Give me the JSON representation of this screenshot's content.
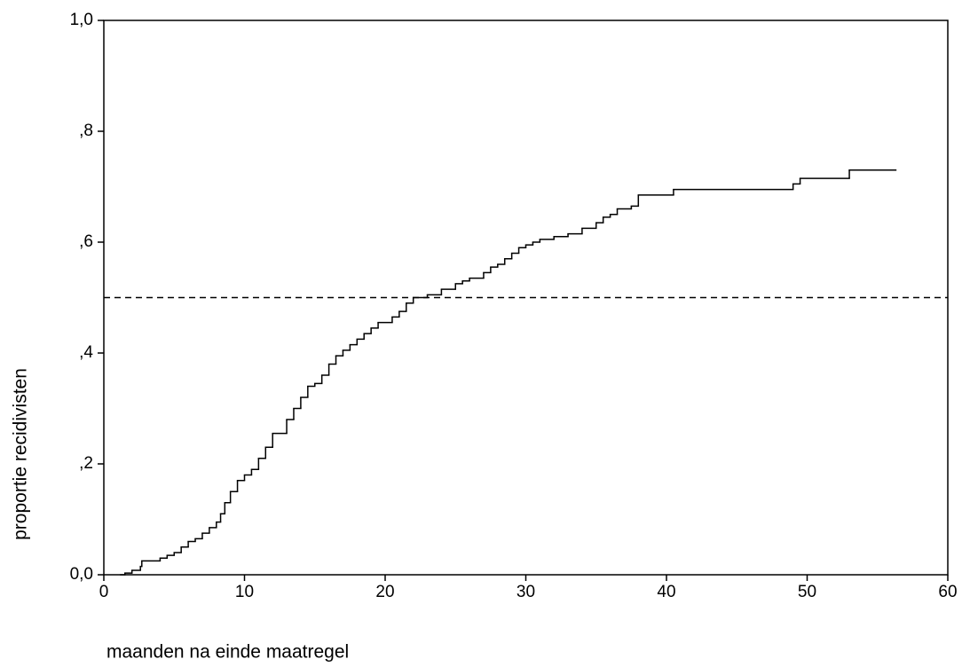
{
  "chart_data": {
    "type": "line",
    "step": true,
    "x_label": "maanden na einde maatregel",
    "y_label": "proportie recidivisten",
    "color": "#000000",
    "x": [
      1.2,
      1.5,
      2,
      2.6,
      2.7,
      4,
      4.5,
      5,
      5.5,
      6,
      6.5,
      7,
      7.5,
      8,
      8.3,
      8.6,
      9,
      9.5,
      10,
      10.5,
      11,
      11.5,
      12,
      13,
      13.5,
      14,
      14.5,
      15,
      15.5,
      16,
      16.5,
      17,
      17.5,
      18,
      18.5,
      19,
      19.5,
      20.5,
      21,
      21.5,
      22,
      23,
      24,
      25,
      25.5,
      26,
      27,
      27.5,
      28,
      28.5,
      29,
      29.5,
      30,
      30.5,
      31,
      32,
      33,
      34,
      35,
      35.5,
      36,
      36.5,
      37.5,
      38,
      40.5,
      49,
      49.5,
      53,
      56.3
    ],
    "values": [
      0.0,
      0.003,
      0.008,
      0.015,
      0.025,
      0.03,
      0.035,
      0.04,
      0.05,
      0.06,
      0.065,
      0.075,
      0.085,
      0.095,
      0.11,
      0.13,
      0.15,
      0.17,
      0.18,
      0.19,
      0.21,
      0.23,
      0.255,
      0.28,
      0.3,
      0.32,
      0.34,
      0.345,
      0.36,
      0.38,
      0.395,
      0.405,
      0.415,
      0.425,
      0.435,
      0.445,
      0.455,
      0.465,
      0.475,
      0.49,
      0.5,
      0.505,
      0.515,
      0.525,
      0.53,
      0.535,
      0.545,
      0.555,
      0.56,
      0.57,
      0.58,
      0.59,
      0.595,
      0.6,
      0.605,
      0.61,
      0.615,
      0.625,
      0.635,
      0.645,
      0.65,
      0.66,
      0.665,
      0.685,
      0.695,
      0.705,
      0.715,
      0.73,
      0.73
    ],
    "reference_line": 0.5,
    "xlim": [
      0,
      60
    ],
    "ylim": [
      0,
      1
    ],
    "xticks": [
      0,
      10,
      20,
      30,
      40,
      50,
      60
    ],
    "yticks": [
      {
        "value": 0,
        "label": "0,0"
      },
      {
        "value": 0.2,
        "label": ",2"
      },
      {
        "value": 0.4,
        "label": ",4"
      },
      {
        "value": 0.6,
        "label": ",6"
      },
      {
        "value": 0.8,
        "label": ",8"
      },
      {
        "value": 1,
        "label": "1,0"
      }
    ]
  }
}
